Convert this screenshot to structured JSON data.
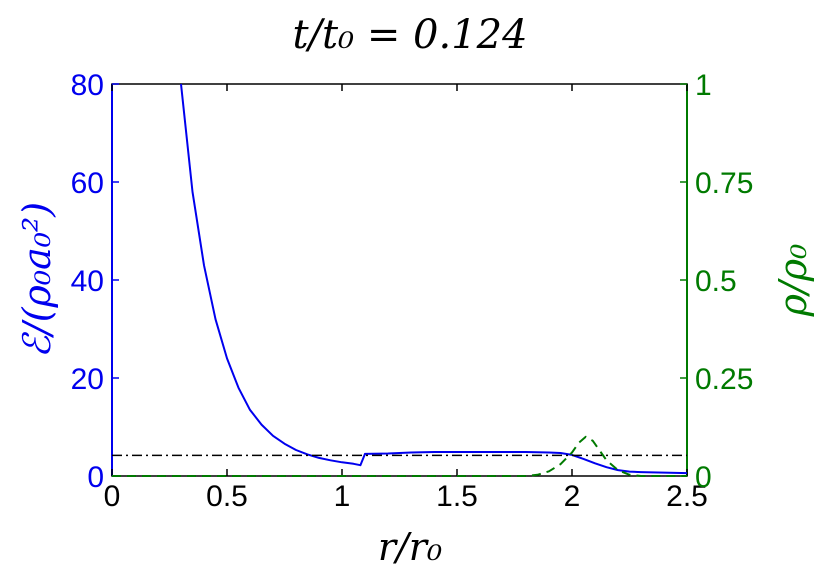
{
  "chart_data": {
    "type": "line",
    "title": "t/t₀ = 0.124",
    "xlabel": "r/r₀",
    "ylabel_left": "ℰ/(ρ₀a₀²)",
    "ylabel_right": "ρ/ρ₀",
    "xlim": [
      0,
      2.5
    ],
    "ylim_left": [
      0,
      80
    ],
    "ylim_right": [
      0,
      1
    ],
    "x_ticks": [
      "0",
      "0.5",
      "1",
      "1.5",
      "2",
      "2.5"
    ],
    "y_ticks_left": [
      "0",
      "20",
      "40",
      "60",
      "80"
    ],
    "y_ticks_right": [
      "0",
      "0.25",
      "0.5",
      "0.75",
      "1"
    ],
    "colors": {
      "left_axis": "#0000ee",
      "right_axis": "#007a00",
      "reference": "#000000"
    },
    "series": [
      {
        "axis": "left",
        "style": "solid",
        "x": [
          0.3,
          0.35,
          0.4,
          0.45,
          0.5,
          0.55,
          0.6,
          0.65,
          0.7,
          0.75,
          0.8,
          0.85,
          0.9,
          0.95,
          1.0,
          1.05,
          1.08,
          1.1,
          1.2,
          1.3,
          1.4,
          1.5,
          1.6,
          1.7,
          1.8,
          1.9,
          1.95,
          2.0,
          2.05,
          2.1,
          2.15,
          2.2,
          2.25,
          2.3,
          2.4,
          2.5
        ],
        "y": [
          80,
          58,
          43,
          32,
          24,
          18,
          13.5,
          10.5,
          8.2,
          6.6,
          5.3,
          4.4,
          3.7,
          3.2,
          2.8,
          2.5,
          2.2,
          4.5,
          4.6,
          4.8,
          4.9,
          4.9,
          4.9,
          4.9,
          4.9,
          4.8,
          4.7,
          4.3,
          3.5,
          2.6,
          1.8,
          1.2,
          0.9,
          0.8,
          0.7,
          0.6
        ]
      },
      {
        "axis": "right",
        "style": "dashed",
        "x": [
          0,
          1.8,
          1.85,
          1.9,
          1.95,
          2.0,
          2.03,
          2.06,
          2.09,
          2.12,
          2.15,
          2.2,
          2.25,
          2.3,
          2.5
        ],
        "y": [
          0,
          0,
          0.003,
          0.012,
          0.03,
          0.06,
          0.085,
          0.1,
          0.09,
          0.065,
          0.04,
          0.015,
          0.003,
          0,
          0
        ]
      },
      {
        "axis": "left",
        "style": "dashdot",
        "x": [
          0,
          2.5
        ],
        "y": [
          4.2,
          4.2
        ]
      }
    ]
  }
}
